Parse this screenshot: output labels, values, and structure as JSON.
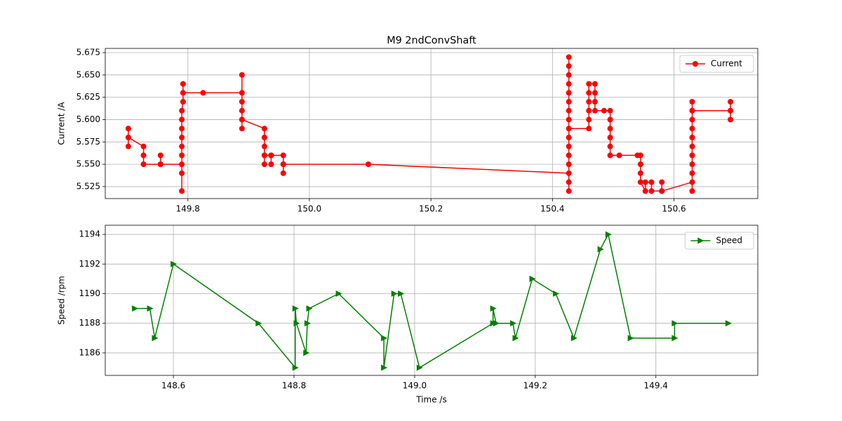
{
  "chart_data": [
    {
      "type": "line",
      "title": "M9 2ndConvShaft",
      "y_label": "Current /A",
      "grid": true,
      "legend": "upper right",
      "xlim": [
        149.664,
        150.738
      ],
      "ylim": [
        5.5116,
        5.6797
      ],
      "xticks": [
        {
          "value": 149.8,
          "label": "149.8"
        },
        {
          "value": 150.0,
          "label": "150.0"
        },
        150.2,
        150.4,
        150.6
      ],
      "yticks": [
        5.525,
        {
          "value": 5.55,
          "label": "5.550"
        },
        5.575,
        {
          "value": 5.6,
          "label": "5.600"
        },
        5.625,
        {
          "value": 5.65,
          "label": "5.650"
        },
        5.675
      ],
      "x": [
        149.702,
        149.702,
        149.702,
        149.702,
        149.727,
        149.727,
        149.727,
        149.755,
        149.755,
        149.755,
        149.79,
        149.79,
        149.79,
        149.79,
        149.79,
        149.79,
        149.79,
        149.79,
        149.79,
        149.792,
        149.792,
        149.792,
        149.825,
        149.889,
        149.889,
        149.889,
        149.889,
        149.889,
        149.889,
        149.889,
        149.926,
        149.926,
        149.926,
        149.926,
        149.926,
        149.926,
        149.937,
        149.937,
        149.937,
        149.957,
        149.957,
        149.957,
        149.957,
        150.097,
        150.427,
        150.427,
        150.427,
        150.427,
        150.427,
        150.427,
        150.427,
        150.427,
        150.427,
        150.427,
        150.427,
        150.427,
        150.427,
        150.427,
        150.427,
        150.427,
        150.46,
        150.46,
        150.46,
        150.46,
        150.46,
        150.46,
        150.47,
        150.47,
        150.47,
        150.47,
        150.485,
        150.495,
        150.495,
        150.495,
        150.495,
        150.495,
        150.495,
        150.51,
        150.54,
        150.545,
        150.545,
        150.545,
        150.545,
        150.553,
        150.553,
        150.563,
        150.563,
        150.58,
        150.58,
        150.58,
        150.63,
        150.63,
        150.63,
        150.63,
        150.63,
        150.63,
        150.63,
        150.63,
        150.63,
        150.63,
        150.63,
        150.63,
        150.693,
        150.693,
        150.693,
        150.693
      ],
      "series": [
        {
          "name": "Current",
          "color": "#ff0000",
          "marker": "o",
          "values": [
            5.59,
            5.58,
            5.57,
            5.58,
            5.57,
            5.56,
            5.55,
            5.55,
            5.56,
            5.55,
            5.55,
            5.52,
            5.54,
            5.56,
            5.57,
            5.58,
            5.59,
            5.6,
            5.61,
            5.62,
            5.64,
            5.63,
            5.63,
            5.63,
            5.65,
            5.62,
            5.61,
            5.6,
            5.59,
            5.6,
            5.59,
            5.58,
            5.57,
            5.56,
            5.55,
            5.56,
            5.56,
            5.55,
            5.56,
            5.56,
            5.55,
            5.54,
            5.55,
            5.55,
            5.54,
            5.52,
            5.53,
            5.55,
            5.56,
            5.57,
            5.58,
            5.6,
            5.61,
            5.62,
            5.63,
            5.64,
            5.65,
            5.66,
            5.67,
            5.59,
            5.59,
            5.6,
            5.61,
            5.62,
            5.63,
            5.64,
            5.64,
            5.63,
            5.62,
            5.61,
            5.61,
            5.61,
            5.6,
            5.59,
            5.58,
            5.57,
            5.56,
            5.56,
            5.56,
            5.56,
            5.55,
            5.54,
            5.53,
            5.52,
            5.53,
            5.53,
            5.52,
            5.52,
            5.53,
            5.52,
            5.53,
            5.52,
            5.54,
            5.55,
            5.56,
            5.57,
            5.58,
            5.59,
            5.6,
            5.61,
            5.62,
            5.61,
            5.61,
            5.62,
            5.6,
            5.61
          ]
        }
      ]
    },
    {
      "type": "line",
      "x_label": "Time /s",
      "y_label": "Speed /rpm",
      "grid": true,
      "legend": "upper right",
      "xlim": [
        148.487,
        149.569
      ],
      "ylim": [
        1184.48,
        1194.62
      ],
      "xticks": [
        148.6,
        148.8,
        {
          "value": 149.0,
          "label": "149.0"
        },
        149.2,
        149.4
      ],
      "yticks": [
        1186,
        1188,
        1190,
        1192,
        1194
      ],
      "x": [
        148.536,
        148.561,
        148.569,
        148.6,
        148.741,
        148.802,
        148.802,
        148.804,
        148.82,
        148.822,
        148.825,
        148.874,
        148.949,
        148.949,
        148.966,
        148.977,
        149.008,
        149.13,
        149.13,
        149.135,
        149.163,
        149.167,
        149.195,
        149.234,
        149.264,
        149.308,
        149.321,
        149.358,
        149.431,
        149.431,
        149.52
      ],
      "series": [
        {
          "name": "Speed",
          "color": "#008000",
          "marker": ">",
          "values": [
            1189,
            1189,
            1187,
            1192,
            1188,
            1185,
            1189,
            1188,
            1186,
            1188,
            1189,
            1190,
            1187,
            1185,
            1190,
            1190,
            1185,
            1188,
            1189,
            1188,
            1188,
            1187,
            1191,
            1190,
            1187,
            1193,
            1194,
            1187,
            1187,
            1188,
            1188
          ]
        }
      ]
    }
  ]
}
